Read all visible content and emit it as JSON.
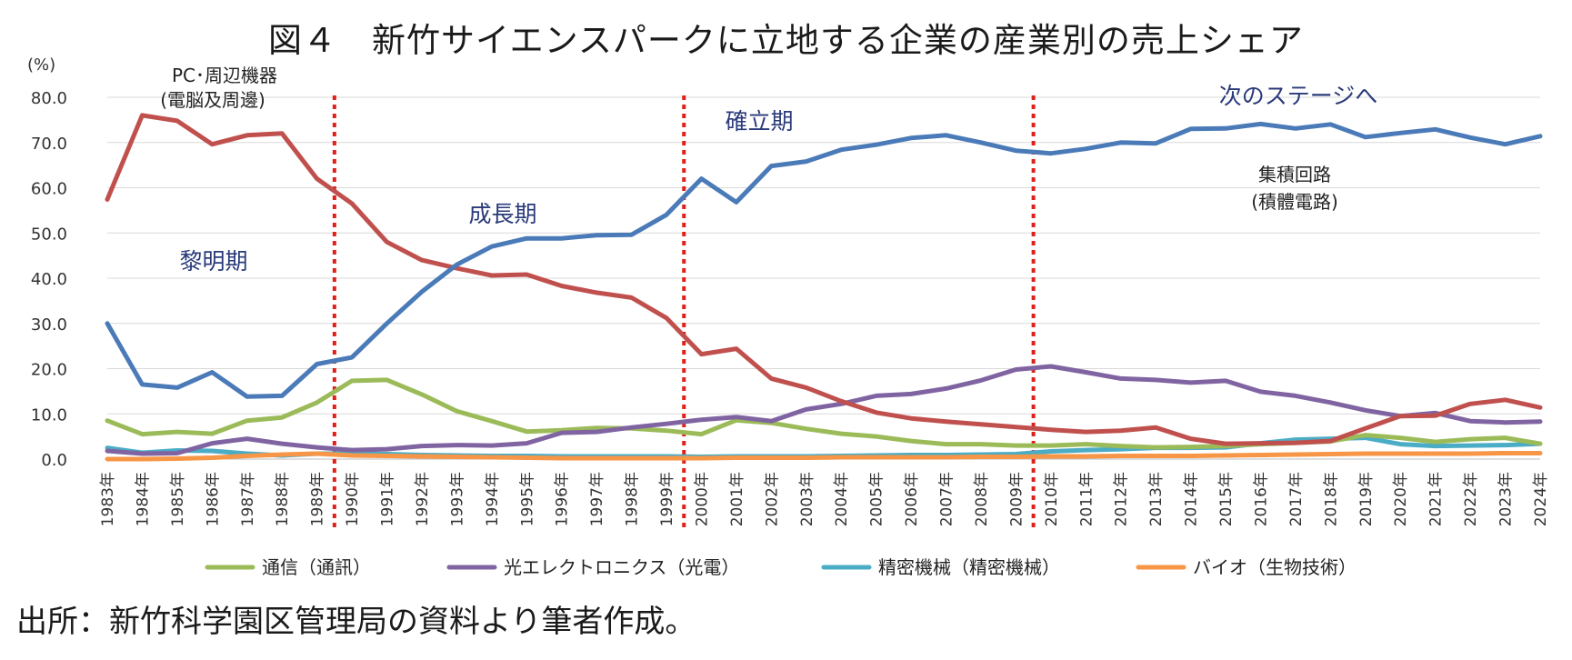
{
  "chart_data": {
    "type": "line",
    "title": "図４　新竹サイエンスパークに立地する企業の産業別の売上シェア",
    "ylabel": "(%)",
    "ylim": [
      0,
      80
    ],
    "yticks": [
      "0.0",
      "10.0",
      "20.0",
      "30.0",
      "40.0",
      "50.0",
      "60.0",
      "70.0",
      "80.0"
    ],
    "grid": true,
    "legend_position": "bottom",
    "categories": [
      "1983年",
      "1984年",
      "1985年",
      "1986年",
      "1987年",
      "1988年",
      "1989年",
      "1990年",
      "1991年",
      "1992年",
      "1993年",
      "1994年",
      "1995年",
      "1996年",
      "1997年",
      "1998年",
      "1999年",
      "2000年",
      "2001年",
      "2002年",
      "2003年",
      "2004年",
      "2005年",
      "2006年",
      "2007年",
      "2008年",
      "2009年",
      "2010年",
      "2011年",
      "2012年",
      "2013年",
      "2014年",
      "2015年",
      "2016年",
      "2017年",
      "2018年",
      "2019年",
      "2020年",
      "2021年",
      "2022年",
      "2023年",
      "2024年"
    ],
    "series": [
      {
        "name": "集積回路（積體電路）",
        "color": "#4a7ab8",
        "in_legend": false,
        "values": [
          30.0,
          16.5,
          15.8,
          19.2,
          13.8,
          14.0,
          21.0,
          22.5,
          30.0,
          37.0,
          43.0,
          47.0,
          48.8,
          48.8,
          49.5,
          49.6,
          54.0,
          62.0,
          56.8,
          64.8,
          65.8,
          68.4,
          69.5,
          71.0,
          71.6,
          70.0,
          68.2,
          67.6,
          68.6,
          70.0,
          69.8,
          73.0,
          73.1,
          74.1,
          73.1,
          74.0,
          71.2,
          72.1,
          72.9,
          71.1,
          69.6,
          71.4
        ]
      },
      {
        "name": "PC･周辺機器（電脳及周邊）",
        "color": "#c0504d",
        "in_legend": false,
        "values": [
          57.4,
          76.0,
          74.8,
          69.6,
          71.6,
          72.0,
          62.0,
          56.5,
          48.0,
          44.0,
          42.2,
          40.6,
          40.8,
          38.3,
          36.8,
          35.7,
          31.2,
          23.2,
          24.4,
          17.8,
          15.8,
          12.8,
          10.3,
          9.0,
          8.3,
          7.7,
          7.1,
          6.5,
          6.0,
          6.3,
          7.0,
          4.5,
          3.4,
          3.5,
          3.6,
          4.0,
          6.8,
          9.5,
          9.6,
          12.2,
          13.1,
          11.4
        ]
      },
      {
        "name": "通信（通訊）",
        "color": "#9bbb59",
        "in_legend": true,
        "values": [
          8.5,
          5.5,
          6.0,
          5.6,
          8.5,
          9.2,
          12.5,
          17.3,
          17.5,
          14.3,
          10.6,
          8.4,
          6.1,
          6.4,
          6.9,
          6.8,
          6.3,
          5.5,
          8.6,
          8.0,
          6.7,
          5.6,
          5.0,
          4.0,
          3.3,
          3.3,
          3.0,
          3.0,
          3.3,
          2.9,
          2.6,
          2.7,
          2.9,
          3.3,
          3.6,
          3.9,
          5.3,
          4.7,
          3.8,
          4.4,
          4.7,
          3.4
        ]
      },
      {
        "name": "光エレクトロニクス（光電）",
        "color": "#8064a2",
        "in_legend": true,
        "values": [
          1.8,
          1.2,
          1.3,
          3.5,
          4.5,
          3.4,
          2.6,
          2.0,
          2.2,
          2.9,
          3.1,
          3.0,
          3.5,
          5.8,
          6.0,
          7.0,
          7.8,
          8.7,
          9.3,
          8.4,
          11.0,
          12.2,
          14.0,
          14.4,
          15.6,
          17.4,
          19.8,
          20.5,
          19.2,
          17.8,
          17.5,
          16.9,
          17.3,
          14.9,
          14.0,
          12.5,
          10.8,
          9.5,
          10.2,
          8.4,
          8.1,
          8.3
        ]
      },
      {
        "name": "精密機械（精密機械）",
        "color": "#4bacc6",
        "in_legend": true,
        "values": [
          2.5,
          1.4,
          1.9,
          1.8,
          1.2,
          0.8,
          1.2,
          1.2,
          1.1,
          0.9,
          0.8,
          0.7,
          0.7,
          0.6,
          0.6,
          0.6,
          0.6,
          0.5,
          0.6,
          0.6,
          0.6,
          0.7,
          0.8,
          0.9,
          0.9,
          1.0,
          1.1,
          1.7,
          2.0,
          2.2,
          2.5,
          2.5,
          2.6,
          3.5,
          4.3,
          4.5,
          4.7,
          3.3,
          2.9,
          3.0,
          3.1,
          3.4
        ]
      },
      {
        "name": "バイオ（生物技術）",
        "color": "#f79646",
        "in_legend": true,
        "values": [
          0.0,
          0.0,
          0.1,
          0.3,
          0.7,
          1.0,
          1.2,
          0.8,
          0.7,
          0.6,
          0.5,
          0.4,
          0.3,
          0.2,
          0.2,
          0.2,
          0.2,
          0.2,
          0.3,
          0.3,
          0.3,
          0.4,
          0.4,
          0.4,
          0.4,
          0.5,
          0.5,
          0.6,
          0.6,
          0.7,
          0.7,
          0.7,
          0.8,
          0.9,
          1.0,
          1.1,
          1.2,
          1.2,
          1.2,
          1.2,
          1.3,
          1.3
        ]
      }
    ],
    "phase_dividers": [
      "1989年",
      "1999年",
      "2009年"
    ],
    "annotations": [
      {
        "id": "phase-dawn",
        "text": "黎明期",
        "kind": "phase"
      },
      {
        "id": "phase-growth",
        "text": "成長期",
        "kind": "phase"
      },
      {
        "id": "phase-established",
        "text": "確立期",
        "kind": "phase"
      },
      {
        "id": "phase-next",
        "text": "次のステージへ",
        "kind": "phase"
      },
      {
        "id": "label-pc-1",
        "text": "PC･周辺機器",
        "kind": "label"
      },
      {
        "id": "label-pc-2",
        "text": "(電脳及周邊)",
        "kind": "label"
      },
      {
        "id": "label-ic-1",
        "text": "集積回路",
        "kind": "label"
      },
      {
        "id": "label-ic-2",
        "text": "(積體電路)",
        "kind": "label"
      }
    ]
  },
  "source_note": "出所：新竹科学園区管理局の資料より筆者作成。"
}
